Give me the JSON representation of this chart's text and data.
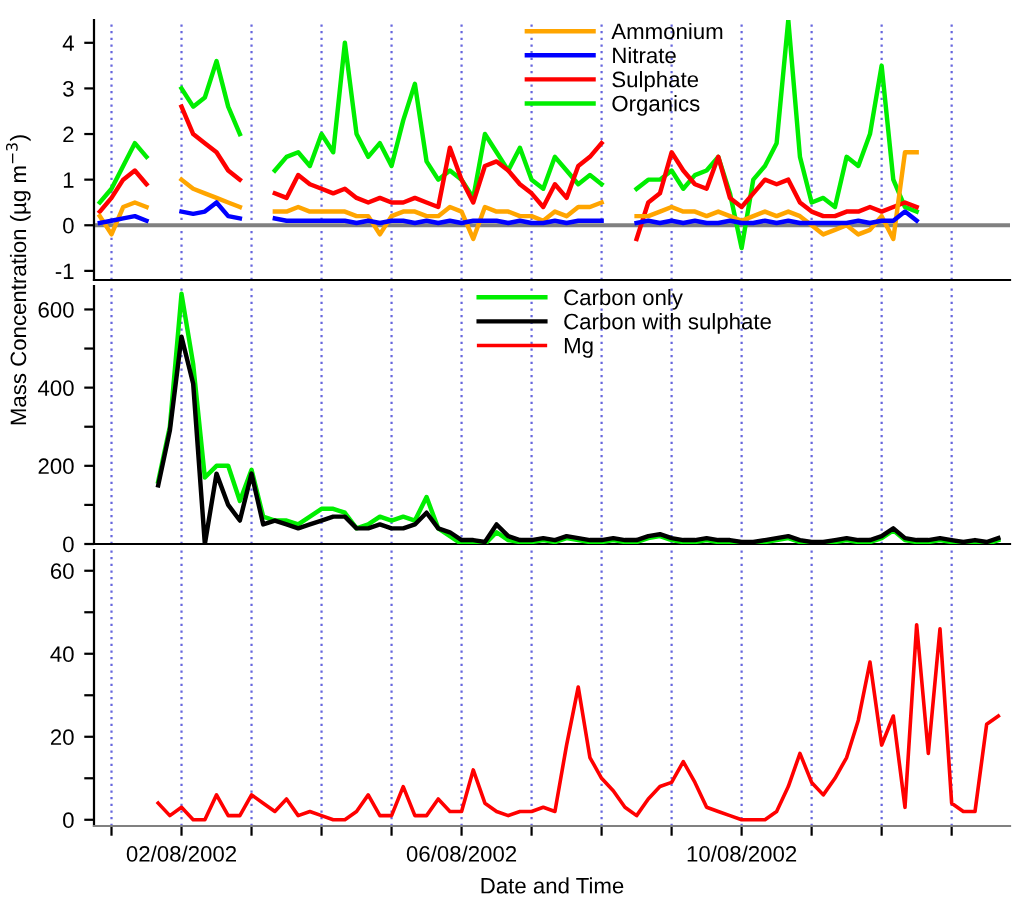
{
  "chart_data": [
    {
      "type": "line",
      "ylabel": "Mass Concentration (µg m$^{−3}$)",
      "x": [
        "2002-07-31T20:00",
        "2002-08-01T00:00",
        "2002-08-01T04:00",
        "2002-08-01T08:00",
        "2002-08-01T12:00",
        "2002-08-01T16:00",
        "2002-08-01T20:00",
        "2002-08-02T00:00",
        "2002-08-02T04:00",
        "2002-08-02T08:00",
        "2002-08-02T12:00",
        "2002-08-02T16:00",
        "2002-08-02T20:00",
        "2002-08-03T00:00",
        "2002-08-03T04:00",
        "2002-08-03T08:00",
        "2002-08-03T12:00",
        "2002-08-03T16:00",
        "2002-08-03T20:00",
        "2002-08-04T00:00",
        "2002-08-04T04:00",
        "2002-08-04T08:00",
        "2002-08-04T12:00",
        "2002-08-04T16:00",
        "2002-08-04T20:00",
        "2002-08-05T00:00",
        "2002-08-05T04:00",
        "2002-08-05T08:00",
        "2002-08-05T12:00",
        "2002-08-05T16:00",
        "2002-08-05T20:00",
        "2002-08-06T00:00",
        "2002-08-06T04:00",
        "2002-08-06T08:00",
        "2002-08-06T12:00",
        "2002-08-06T16:00",
        "2002-08-06T20:00",
        "2002-08-07T00:00",
        "2002-08-07T04:00",
        "2002-08-07T08:00",
        "2002-08-07T12:00",
        "2002-08-07T16:00",
        "2002-08-07T20:00",
        "2002-08-08T00:00",
        "2002-08-08T04:00",
        "2002-08-08T08:00",
        "2002-08-08T12:00",
        "2002-08-08T16:00",
        "2002-08-08T20:00",
        "2002-08-09T00:00",
        "2002-08-09T04:00",
        "2002-08-09T08:00",
        "2002-08-09T12:00",
        "2002-08-09T16:00",
        "2002-08-09T20:00",
        "2002-08-10T00:00",
        "2002-08-10T04:00",
        "2002-08-10T08:00",
        "2002-08-10T12:00",
        "2002-08-10T16:00",
        "2002-08-10T20:00",
        "2002-08-11T00:00",
        "2002-08-11T04:00",
        "2002-08-11T08:00",
        "2002-08-11T12:00",
        "2002-08-11T16:00",
        "2002-08-11T20:00",
        "2002-08-12T00:00",
        "2002-08-12T04:00",
        "2002-08-12T08:00",
        "2002-08-12T12:00"
      ],
      "series": [
        {
          "name": "Organics",
          "color": "#00ee00",
          "values": [
            0.5,
            0.8,
            1.3,
            1.8,
            1.5,
            null,
            null,
            3.0,
            2.6,
            2.8,
            3.6,
            2.6,
            2.0,
            null,
            null,
            1.2,
            1.5,
            1.6,
            1.3,
            2.0,
            1.6,
            4.0,
            2.0,
            1.5,
            1.8,
            1.3,
            2.3,
            3.1,
            1.4,
            1.0,
            1.2,
            1.0,
            0.6,
            2.0,
            1.6,
            1.2,
            1.7,
            1.0,
            0.8,
            1.5,
            1.2,
            0.9,
            1.1,
            0.9,
            null,
            null,
            0.8,
            1.0,
            1.0,
            1.2,
            0.8,
            1.1,
            1.2,
            1.5,
            0.7,
            -0.5,
            1.0,
            1.3,
            1.8,
            4.5,
            1.5,
            0.5,
            0.6,
            0.4,
            1.5,
            1.3,
            2.0,
            3.5,
            1.0,
            0.4,
            0.3
          ]
        },
        {
          "name": "Sulphate",
          "color": "#ff0000",
          "values": [
            0.3,
            0.6,
            1.0,
            1.2,
            0.9,
            null,
            null,
            2.6,
            2.0,
            1.8,
            1.6,
            1.2,
            1.0,
            null,
            null,
            0.7,
            0.6,
            1.1,
            0.9,
            0.8,
            0.7,
            0.8,
            0.6,
            0.5,
            0.6,
            0.5,
            0.5,
            0.6,
            0.5,
            0.4,
            1.7,
            1.0,
            0.5,
            1.3,
            1.4,
            1.2,
            0.9,
            0.7,
            0.4,
            0.9,
            0.6,
            1.3,
            1.5,
            1.8,
            null,
            null,
            -0.3,
            0.5,
            0.7,
            1.6,
            1.2,
            0.9,
            0.8,
            1.5,
            0.6,
            0.4,
            0.7,
            1.0,
            0.9,
            1.0,
            0.5,
            0.3,
            0.2,
            0.2,
            0.3,
            0.3,
            0.4,
            0.3,
            0.4,
            0.5,
            0.4
          ]
        },
        {
          "name": "Ammonium",
          "color": "#ffa500",
          "values": [
            0.2,
            -0.2,
            0.4,
            0.5,
            0.4,
            null,
            null,
            1.0,
            0.8,
            0.7,
            0.6,
            0.5,
            0.4,
            null,
            null,
            0.3,
            0.3,
            0.4,
            0.3,
            0.3,
            0.3,
            0.3,
            0.2,
            0.2,
            -0.2,
            0.2,
            0.3,
            0.3,
            0.2,
            0.2,
            0.4,
            0.3,
            -0.3,
            0.4,
            0.3,
            0.3,
            0.2,
            0.2,
            0.1,
            0.3,
            0.2,
            0.4,
            0.4,
            0.5,
            null,
            null,
            0.2,
            0.2,
            0.3,
            0.4,
            0.3,
            0.3,
            0.2,
            0.3,
            0.2,
            0.1,
            0.2,
            0.3,
            0.2,
            0.3,
            0.2,
            0.0,
            -0.2,
            -0.1,
            0.0,
            -0.2,
            -0.1,
            0.2,
            -0.3,
            1.6,
            1.6
          ]
        },
        {
          "name": "Nitrate",
          "color": "#0000ff",
          "values": [
            0.05,
            0.1,
            0.15,
            0.2,
            0.1,
            null,
            null,
            0.3,
            0.25,
            0.3,
            0.5,
            0.2,
            0.15,
            null,
            null,
            0.15,
            0.1,
            0.1,
            0.1,
            0.1,
            0.1,
            0.1,
            0.05,
            0.1,
            0.05,
            0.1,
            0.1,
            0.05,
            0.1,
            0.05,
            0.1,
            0.05,
            0.1,
            0.1,
            0.1,
            0.05,
            0.1,
            0.05,
            0.05,
            0.1,
            0.05,
            0.1,
            0.1,
            0.1,
            null,
            null,
            0.05,
            0.1,
            0.05,
            0.1,
            0.05,
            0.1,
            0.05,
            0.05,
            0.1,
            0.05,
            0.05,
            0.1,
            0.05,
            0.1,
            0.05,
            0.05,
            0.05,
            0.05,
            0.05,
            0.1,
            0.05,
            0.1,
            0.1,
            0.3,
            0.1
          ]
        }
      ],
      "xlim": [
        "2002-07-31T18:00",
        "2002-08-13T20:00"
      ],
      "xticks": [
        {
          "value": "2002-08-01",
          "label": null
        },
        {
          "value": "2002-08-02",
          "label": null
        },
        {
          "value": "2002-08-03",
          "label": null
        },
        {
          "value": "2002-08-04",
          "label": null
        },
        {
          "value": "2002-08-05",
          "label": null
        },
        {
          "value": "2002-08-06",
          "label": null
        },
        {
          "value": "2002-08-07",
          "label": null
        },
        {
          "value": "2002-08-08",
          "label": null
        },
        {
          "value": "2002-08-09",
          "label": null
        },
        {
          "value": "2002-08-10",
          "label": null
        },
        {
          "value": "2002-08-11",
          "label": null
        },
        {
          "value": "2002-08-12",
          "label": null
        },
        {
          "value": "2002-08-13",
          "label": null
        }
      ],
      "ylim": [
        -1.2,
        4.5
      ],
      "yticks": [
        -1,
        0,
        1,
        2,
        3,
        4
      ],
      "ref_lines": [
        {
          "axis": "y",
          "value": 0,
          "color": "#808080"
        }
      ],
      "grid": "x",
      "legend": "top",
      "tick_labels": "y"
    },
    {
      "type": "line",
      "x": [
        "2002-08-01T16:00",
        "2002-08-01T20:00",
        "2002-08-02T00:00",
        "2002-08-02T04:00",
        "2002-08-02T08:00",
        "2002-08-02T12:00",
        "2002-08-02T16:00",
        "2002-08-02T20:00",
        "2002-08-03T00:00",
        "2002-08-03T04:00",
        "2002-08-03T08:00",
        "2002-08-03T12:00",
        "2002-08-03T16:00",
        "2002-08-03T20:00",
        "2002-08-04T00:00",
        "2002-08-04T04:00",
        "2002-08-04T08:00",
        "2002-08-04T12:00",
        "2002-08-04T16:00",
        "2002-08-04T20:00",
        "2002-08-05T00:00",
        "2002-08-05T04:00",
        "2002-08-05T08:00",
        "2002-08-05T12:00",
        "2002-08-05T16:00",
        "2002-08-05T20:00",
        "2002-08-06T00:00",
        "2002-08-06T04:00",
        "2002-08-06T08:00",
        "2002-08-06T12:00",
        "2002-08-06T16:00",
        "2002-08-06T20:00",
        "2002-08-07T00:00",
        "2002-08-07T04:00",
        "2002-08-07T08:00",
        "2002-08-07T12:00",
        "2002-08-07T16:00",
        "2002-08-07T20:00",
        "2002-08-08T00:00",
        "2002-08-08T04:00",
        "2002-08-08T08:00",
        "2002-08-08T12:00",
        "2002-08-08T16:00",
        "2002-08-08T20:00",
        "2002-08-09T00:00",
        "2002-08-09T04:00",
        "2002-08-09T08:00",
        "2002-08-09T12:00",
        "2002-08-09T16:00",
        "2002-08-09T20:00",
        "2002-08-10T00:00",
        "2002-08-10T04:00",
        "2002-08-10T08:00",
        "2002-08-10T12:00",
        "2002-08-10T16:00",
        "2002-08-10T20:00",
        "2002-08-11T00:00",
        "2002-08-11T04:00",
        "2002-08-11T08:00",
        "2002-08-11T12:00",
        "2002-08-11T16:00",
        "2002-08-11T20:00",
        "2002-08-12T00:00",
        "2002-08-12T04:00",
        "2002-08-12T08:00",
        "2002-08-12T12:00",
        "2002-08-12T16:00",
        "2002-08-12T20:00",
        "2002-08-13T00:00",
        "2002-08-13T04:00",
        "2002-08-13T08:00",
        "2002-08-13T12:00",
        "2002-08-13T16:00"
      ],
      "series": [
        {
          "name": "Carbon only",
          "color": "#00ee00",
          "values": [
            160,
            300,
            640,
            460,
            170,
            200,
            200,
            110,
            190,
            70,
            60,
            60,
            50,
            70,
            90,
            90,
            80,
            40,
            50,
            70,
            60,
            70,
            60,
            120,
            40,
            20,
            0,
            5,
            0,
            30,
            10,
            5,
            5,
            10,
            5,
            15,
            10,
            5,
            5,
            10,
            5,
            5,
            15,
            20,
            10,
            5,
            5,
            10,
            5,
            5,
            0,
            0,
            5,
            10,
            15,
            5,
            0,
            0,
            5,
            10,
            5,
            5,
            15,
            35,
            10,
            5,
            5,
            10,
            5,
            0,
            5,
            0,
            10
          ]
        },
        {
          "name": "Carbon with sulphate",
          "color": "#000000",
          "values": [
            150,
            290,
            530,
            410,
            0,
            180,
            100,
            60,
            180,
            50,
            60,
            50,
            40,
            50,
            60,
            70,
            70,
            40,
            40,
            50,
            40,
            40,
            50,
            80,
            40,
            30,
            10,
            10,
            5,
            50,
            20,
            10,
            10,
            15,
            10,
            20,
            15,
            10,
            10,
            15,
            10,
            10,
            20,
            25,
            15,
            10,
            10,
            15,
            10,
            10,
            5,
            5,
            10,
            15,
            20,
            10,
            5,
            5,
            10,
            15,
            10,
            10,
            20,
            40,
            15,
            10,
            10,
            15,
            10,
            5,
            10,
            5,
            15
          ]
        }
      ],
      "xlim": [
        "2002-07-31T18:00",
        "2002-08-13T20:00"
      ],
      "xticks": [
        {
          "value": "2002-08-01",
          "label": null
        },
        {
          "value": "2002-08-02",
          "label": null
        },
        {
          "value": "2002-08-03",
          "label": null
        },
        {
          "value": "2002-08-04",
          "label": null
        },
        {
          "value": "2002-08-05",
          "label": null
        },
        {
          "value": "2002-08-06",
          "label": null
        },
        {
          "value": "2002-08-07",
          "label": null
        },
        {
          "value": "2002-08-08",
          "label": null
        },
        {
          "value": "2002-08-09",
          "label": null
        },
        {
          "value": "2002-08-10",
          "label": null
        },
        {
          "value": "2002-08-11",
          "label": null
        },
        {
          "value": "2002-08-12",
          "label": null
        },
        {
          "value": "2002-08-13",
          "label": null
        }
      ],
      "ylim": [
        0,
        660
      ],
      "yticks": [
        0,
        {
          "value": 100,
          "label": null
        },
        200,
        {
          "value": 300,
          "label": null
        },
        400,
        {
          "value": 500,
          "label": null
        },
        600
      ],
      "grid": "x",
      "legend": "top",
      "tick_labels": "y"
    },
    {
      "type": "line",
      "xlabel": "Date and Time",
      "x": [
        "2002-08-01T16:00",
        "2002-08-01T20:00",
        "2002-08-02T00:00",
        "2002-08-02T04:00",
        "2002-08-02T08:00",
        "2002-08-02T12:00",
        "2002-08-02T16:00",
        "2002-08-02T20:00",
        "2002-08-03T00:00",
        "2002-08-03T04:00",
        "2002-08-03T08:00",
        "2002-08-03T12:00",
        "2002-08-03T16:00",
        "2002-08-03T20:00",
        "2002-08-04T00:00",
        "2002-08-04T04:00",
        "2002-08-04T08:00",
        "2002-08-04T12:00",
        "2002-08-04T16:00",
        "2002-08-04T20:00",
        "2002-08-05T00:00",
        "2002-08-05T04:00",
        "2002-08-05T08:00",
        "2002-08-05T12:00",
        "2002-08-05T16:00",
        "2002-08-05T20:00",
        "2002-08-06T00:00",
        "2002-08-06T04:00",
        "2002-08-06T08:00",
        "2002-08-06T12:00",
        "2002-08-06T16:00",
        "2002-08-06T20:00",
        "2002-08-07T00:00",
        "2002-08-07T04:00",
        "2002-08-07T08:00",
        "2002-08-07T12:00",
        "2002-08-07T16:00",
        "2002-08-07T20:00",
        "2002-08-08T00:00",
        "2002-08-08T04:00",
        "2002-08-08T08:00",
        "2002-08-08T12:00",
        "2002-08-08T16:00",
        "2002-08-08T20:00",
        "2002-08-09T00:00",
        "2002-08-09T04:00",
        "2002-08-09T08:00",
        "2002-08-09T12:00",
        "2002-08-09T16:00",
        "2002-08-09T20:00",
        "2002-08-10T00:00",
        "2002-08-10T04:00",
        "2002-08-10T08:00",
        "2002-08-10T12:00",
        "2002-08-10T16:00",
        "2002-08-10T20:00",
        "2002-08-11T00:00",
        "2002-08-11T04:00",
        "2002-08-11T08:00",
        "2002-08-11T12:00",
        "2002-08-11T16:00",
        "2002-08-11T20:00",
        "2002-08-12T00:00",
        "2002-08-12T04:00",
        "2002-08-12T08:00",
        "2002-08-12T12:00",
        "2002-08-12T16:00",
        "2002-08-12T20:00",
        "2002-08-13T00:00",
        "2002-08-13T04:00",
        "2002-08-13T08:00",
        "2002-08-13T12:00",
        "2002-08-13T16:00"
      ],
      "series": [
        {
          "name": "Mg",
          "color": "#ff0000",
          "values": [
            4,
            1,
            3,
            0,
            0,
            6,
            1,
            1,
            6,
            4,
            2,
            5,
            1,
            2,
            1,
            0,
            0,
            2,
            6,
            1,
            1,
            8,
            1,
            1,
            5,
            2,
            2,
            12,
            4,
            2,
            1,
            2,
            2,
            3,
            2,
            18,
            32,
            15,
            10,
            7,
            3,
            1,
            5,
            8,
            9,
            14,
            9,
            3,
            2,
            1,
            0,
            0,
            0,
            2,
            8,
            16,
            9,
            6,
            10,
            15,
            24,
            38,
            18,
            25,
            3,
            47,
            16,
            46,
            4,
            2,
            2,
            23,
            25
          ]
        }
      ],
      "xlim": [
        "2002-07-31T18:00",
        "2002-08-13T20:00"
      ],
      "xticks": [
        {
          "value": "2002-08-01",
          "label": null
        },
        {
          "value": "2002-08-02",
          "label": "02/08/2002"
        },
        {
          "value": "2002-08-03",
          "label": null
        },
        {
          "value": "2002-08-04",
          "label": null
        },
        {
          "value": "2002-08-05",
          "label": null
        },
        {
          "value": "2002-08-06",
          "label": "06/08/2002"
        },
        {
          "value": "2002-08-07",
          "label": null
        },
        {
          "value": "2002-08-08",
          "label": null
        },
        {
          "value": "2002-08-09",
          "label": null
        },
        {
          "value": "2002-08-10",
          "label": "10/08/2002"
        },
        {
          "value": "2002-08-11",
          "label": null
        },
        {
          "value": "2002-08-12",
          "label": null
        },
        {
          "value": "2002-08-13",
          "label": null
        }
      ],
      "ylim": [
        -1.5,
        65
      ],
      "yticks": [
        0,
        {
          "value": 10,
          "label": null
        },
        20,
        {
          "value": 30,
          "label": null
        },
        40,
        {
          "value": 50,
          "label": null
        },
        60
      ],
      "grid": "x",
      "legend": "above"
    }
  ]
}
